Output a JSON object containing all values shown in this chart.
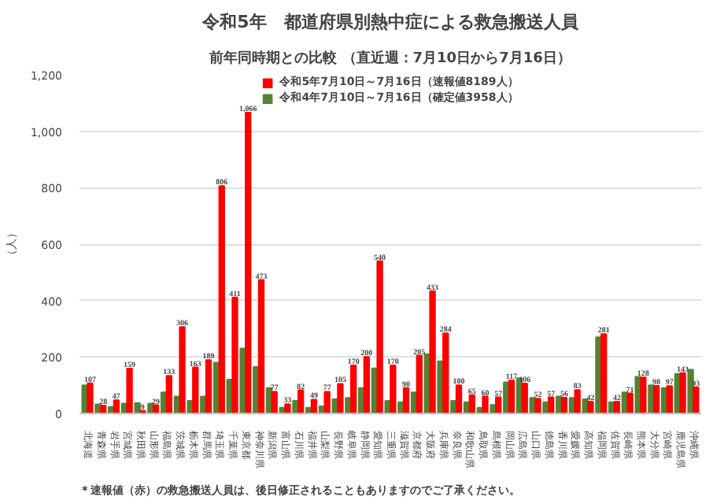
{
  "chart_data": {
    "type": "bar",
    "title": "令和5年　都道府県別熱中症による救急搬送人員",
    "subtitle": "前年同時期との比較 （直近週：7月10日から7月16日）",
    "ylabel": "（人）",
    "categories": [
      "北海道",
      "青森県",
      "岩手県",
      "宮城県",
      "秋田県",
      "山形県",
      "福島県",
      "茨城県",
      "栃木県",
      "群馬県",
      "埼玉県",
      "千葉県",
      "東京都",
      "神奈川県",
      "新潟県",
      "富山県",
      "石川県",
      "福井県",
      "山梨県",
      "長野県",
      "岐阜県",
      "静岡県",
      "愛知県",
      "三重県",
      "滋賀県",
      "京都府",
      "大阪府",
      "兵庫県",
      "奈良県",
      "和歌山県",
      "鳥取県",
      "島根県",
      "岡山県",
      "広島県",
      "山口県",
      "徳島県",
      "香川県",
      "愛媛県",
      "高知県",
      "福岡県",
      "佐賀県",
      "長崎県",
      "熊本県",
      "大分県",
      "宮崎県",
      "鹿児島県",
      "沖縄県"
    ],
    "series": [
      {
        "name": "令和4年7月10日～7月16日（確定値3958人）",
        "color": "#548235",
        "values": [
          100,
          32,
          23,
          35,
          37,
          35,
          75,
          60,
          45,
          60,
          180,
          120,
          230,
          165,
          90,
          20,
          45,
          20,
          25,
          50,
          55,
          90,
          160,
          45,
          40,
          75,
          210,
          185,
          45,
          40,
          20,
          30,
          110,
          125,
          55,
          40,
          60,
          55,
          50,
          270,
          40,
          75,
          130,
          100,
          90,
          140,
          155
        ]
      },
      {
        "name": "令和5年7月10日～7月16日（速報値8189人）",
        "color": "#ff0000",
        "values": [
          107,
          28,
          47,
          159,
          9,
          29,
          133,
          306,
          163,
          189,
          806,
          411,
          1066,
          473,
          77,
          33,
          82,
          49,
          77,
          105,
          170,
          200,
          540,
          170,
          90,
          205,
          433,
          284,
          100,
          65,
          60,
          57,
          117,
          106,
          52,
          57,
          56,
          83,
          42,
          281,
          42,
          71,
          128,
          98,
          97,
          143,
          93
        ],
        "value_labels": [
          "107",
          "28",
          "47",
          "159",
          "9",
          "29",
          "133",
          "306",
          "163",
          "189",
          "806",
          "411",
          "1,066",
          "473",
          "77",
          "33",
          "82",
          "49",
          "77",
          "105",
          "170",
          "200",
          "540",
          "170",
          "90",
          "205",
          "433",
          "284",
          "100",
          "65",
          "60",
          "57",
          "117",
          "106",
          "52",
          "57",
          "56",
          "83",
          "42",
          "281",
          "42",
          "71",
          "128",
          "98",
          "97",
          "143",
          "93"
        ]
      }
    ],
    "ylim": [
      0,
      1200
    ],
    "yticks": [
      0,
      200,
      400,
      600,
      800,
      {
        "value": 1000,
        "label": "1,000"
      },
      {
        "value": 1200,
        "label": "1,200"
      }
    ],
    "grid": "y",
    "legend": "top",
    "annotations": [
      "＊速報値（赤）の救急搬送人員は、後日修正されることもありますのでご了承ください。"
    ]
  }
}
